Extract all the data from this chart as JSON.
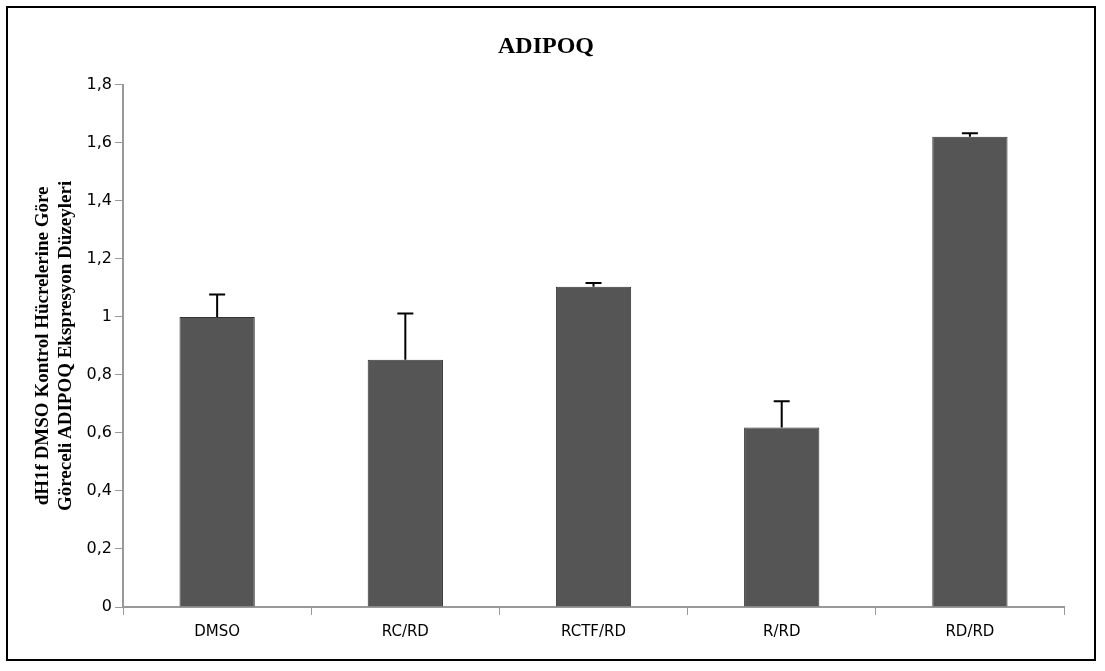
{
  "chart_data": {
    "type": "bar",
    "title": "ADIPOQ",
    "ylabel": "dH1f DMSO Kontrol Hücrelerine Göre\nGöreceli ADIPOQ Ekspresyon Düzeyleri",
    "categories": [
      "DMSO",
      "RC/RD",
      "RCTF/RD",
      "R/RD",
      "RD/RD"
    ],
    "values": [
      1.0,
      0.852,
      1.104,
      0.619,
      1.621
    ],
    "errors": [
      [
        1.0,
        1.077
      ],
      [
        0.852,
        1.012
      ],
      [
        1.104,
        1.117
      ],
      [
        0.619,
        0.709
      ],
      [
        1.621,
        1.633
      ]
    ],
    "color": "#555555",
    "ylim": [
      0,
      1.8
    ],
    "yticks": [
      {
        "value": 0,
        "label": "0"
      },
      {
        "value": 0.2,
        "label": "0,2"
      },
      {
        "value": 0.4,
        "label": "0,4"
      },
      {
        "value": 0.6,
        "label": "0,6"
      },
      {
        "value": 0.8,
        "label": "0,8"
      },
      {
        "value": 1,
        "label": "1"
      },
      {
        "value": 1.2,
        "label": "1,2"
      },
      {
        "value": 1.4,
        "label": "1,4"
      },
      {
        "value": 1.6,
        "label": "1,6"
      },
      {
        "value": 1.8,
        "label": "1,8"
      }
    ],
    "grid": false,
    "legend": false
  }
}
